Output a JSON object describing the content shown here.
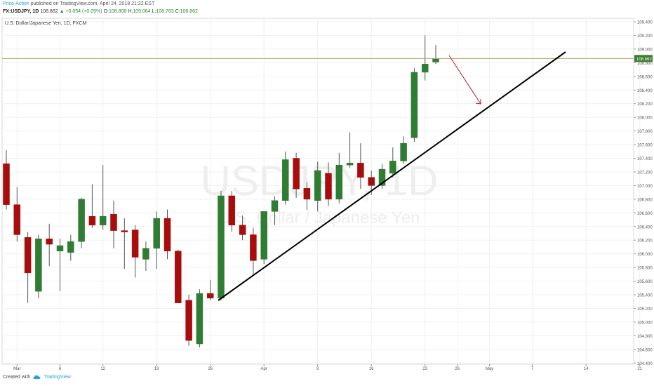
{
  "header": {
    "author": "Price-Action",
    "published": "published on TradingView.com, April 24, 2018 21:22 EST",
    "symbol": "FX:USDJPY, 1D",
    "price": "108.862",
    "change": "▲ +0.054 (+0.05%)",
    "o_label": "O:",
    "o_value": "108.808",
    "h_label": "H:",
    "h_value": "109.064",
    "l_label": "L:",
    "l_value": "108.783",
    "c_label": "C:",
    "c_value": "108.862"
  },
  "footer": {
    "created_with": "Created with",
    "brand": "TradingView"
  },
  "chart_data": {
    "type": "candlestick",
    "instrument_label": "U.S. Dollar/Japanese Yen, 1D, FXCM",
    "watermark_symbol": "USDJPY, 1D",
    "watermark_name": "U.S. Dollar / Japanese Yen",
    "last_price_label": "108.862",
    "y_range": [
      104.35,
      109.45
    ],
    "y_ticks": [
      "109.400",
      "109.200",
      "109.000",
      "108.800",
      "108.600",
      "108.400",
      "108.200",
      "108.000",
      "107.800",
      "107.600",
      "107.400",
      "107.200",
      "107.000",
      "106.800",
      "106.600",
      "106.400",
      "106.200",
      "106.000",
      "105.800",
      "105.600",
      "105.400",
      "105.200",
      "105.000",
      "104.800",
      "104.600",
      "104.400"
    ],
    "x_labels": [
      {
        "label": "Mar",
        "t": 1
      },
      {
        "label": "6",
        "t": 5
      },
      {
        "label": "12",
        "t": 9
      },
      {
        "label": "19",
        "t": 14
      },
      {
        "label": "26",
        "t": 19
      },
      {
        "label": "Apr",
        "t": 24
      },
      {
        "label": "9",
        "t": 29
      },
      {
        "label": "16",
        "t": 34
      },
      {
        "label": "23",
        "t": 39
      },
      {
        "label": "26",
        "t": 42
      },
      {
        "label": "May",
        "t": 45
      },
      {
        "label": "7",
        "t": 49
      },
      {
        "label": "14",
        "t": 54
      },
      {
        "label": "21",
        "t": 59
      }
    ],
    "candles": [
      {
        "t": 0,
        "o": 107.32,
        "h": 107.52,
        "l": 106.65,
        "c": 106.72
      },
      {
        "t": 1,
        "o": 106.72,
        "h": 106.98,
        "l": 106.18,
        "c": 106.28
      },
      {
        "t": 2,
        "o": 106.24,
        "h": 106.32,
        "l": 105.28,
        "c": 105.72
      },
      {
        "t": 3,
        "o": 105.45,
        "h": 106.28,
        "l": 105.35,
        "c": 106.22
      },
      {
        "t": 4,
        "o": 106.22,
        "h": 106.44,
        "l": 105.82,
        "c": 106.14
      },
      {
        "t": 5,
        "o": 106.04,
        "h": 106.22,
        "l": 105.45,
        "c": 106.12
      },
      {
        "t": 6,
        "o": 106.02,
        "h": 106.28,
        "l": 105.9,
        "c": 106.18
      },
      {
        "t": 7,
        "o": 106.18,
        "h": 106.82,
        "l": 106.08,
        "c": 106.8
      },
      {
        "t": 8,
        "o": 106.55,
        "h": 107.02,
        "l": 106.38,
        "c": 106.42
      },
      {
        "t": 9,
        "o": 106.42,
        "h": 107.3,
        "l": 106.35,
        "c": 106.55
      },
      {
        "t": 10,
        "o": 106.58,
        "h": 106.78,
        "l": 106.08,
        "c": 106.34
      },
      {
        "t": 11,
        "o": 106.34,
        "h": 106.52,
        "l": 105.78,
        "c": 106.32
      },
      {
        "t": 12,
        "o": 106.35,
        "h": 106.42,
        "l": 105.65,
        "c": 105.95
      },
      {
        "t": 13,
        "o": 105.92,
        "h": 106.18,
        "l": 105.75,
        "c": 106.08
      },
      {
        "t": 14,
        "o": 106.08,
        "h": 106.62,
        "l": 105.78,
        "c": 106.52
      },
      {
        "t": 15,
        "o": 106.52,
        "h": 106.65,
        "l": 105.92,
        "c": 106.04
      },
      {
        "t": 16,
        "o": 106.04,
        "h": 106.06,
        "l": 105.28,
        "c": 105.28
      },
      {
        "t": 17,
        "o": 105.32,
        "h": 105.4,
        "l": 104.65,
        "c": 104.73
      },
      {
        "t": 18,
        "o": 104.68,
        "h": 105.48,
        "l": 104.63,
        "c": 105.42
      },
      {
        "t": 19,
        "o": 105.42,
        "h": 105.62,
        "l": 105.32,
        "c": 105.35
      },
      {
        "t": 20,
        "o": 105.35,
        "h": 106.92,
        "l": 105.32,
        "c": 106.85
      },
      {
        "t": 21,
        "o": 106.85,
        "h": 106.92,
        "l": 106.32,
        "c": 106.42
      },
      {
        "t": 22,
        "o": 106.42,
        "h": 106.56,
        "l": 106.2,
        "c": 106.28
      },
      {
        "t": 23,
        "o": 106.28,
        "h": 106.38,
        "l": 105.68,
        "c": 105.9
      },
      {
        "t": 24,
        "o": 105.92,
        "h": 106.62,
        "l": 105.85,
        "c": 106.62
      },
      {
        "t": 25,
        "o": 106.62,
        "h": 106.84,
        "l": 106.42,
        "c": 106.78
      },
      {
        "t": 26,
        "o": 106.78,
        "h": 107.5,
        "l": 106.72,
        "c": 107.38
      },
      {
        "t": 27,
        "o": 107.4,
        "h": 107.48,
        "l": 106.82,
        "c": 106.95
      },
      {
        "t": 28,
        "o": 106.96,
        "h": 107.05,
        "l": 106.64,
        "c": 106.8
      },
      {
        "t": 29,
        "o": 106.78,
        "h": 107.35,
        "l": 106.62,
        "c": 107.22
      },
      {
        "t": 30,
        "o": 107.18,
        "h": 107.34,
        "l": 106.7,
        "c": 106.8
      },
      {
        "t": 31,
        "o": 106.8,
        "h": 107.48,
        "l": 106.74,
        "c": 107.3
      },
      {
        "t": 32,
        "o": 107.3,
        "h": 107.78,
        "l": 107.26,
        "c": 107.33
      },
      {
        "t": 33,
        "o": 107.33,
        "h": 107.62,
        "l": 106.95,
        "c": 107.12
      },
      {
        "t": 34,
        "o": 107.12,
        "h": 107.22,
        "l": 106.86,
        "c": 107.0
      },
      {
        "t": 35,
        "o": 107.0,
        "h": 107.32,
        "l": 106.95,
        "c": 107.24
      },
      {
        "t": 36,
        "o": 107.18,
        "h": 107.56,
        "l": 107.12,
        "c": 107.36
      },
      {
        "t": 37,
        "o": 107.36,
        "h": 107.72,
        "l": 107.32,
        "c": 107.62
      },
      {
        "t": 38,
        "o": 107.7,
        "h": 108.72,
        "l": 107.64,
        "c": 108.66
      },
      {
        "t": 39,
        "o": 108.66,
        "h": 109.2,
        "l": 108.54,
        "c": 108.78
      },
      {
        "t": 40,
        "o": 108.81,
        "h": 109.06,
        "l": 108.78,
        "c": 108.86
      }
    ]
  },
  "colors": {
    "up": "#2f7d32",
    "down": "#a80d0d",
    "grid": "#f0f0f0",
    "trendline": "#000000",
    "arrow": "#b22222",
    "last_line": "#b5a26a"
  }
}
